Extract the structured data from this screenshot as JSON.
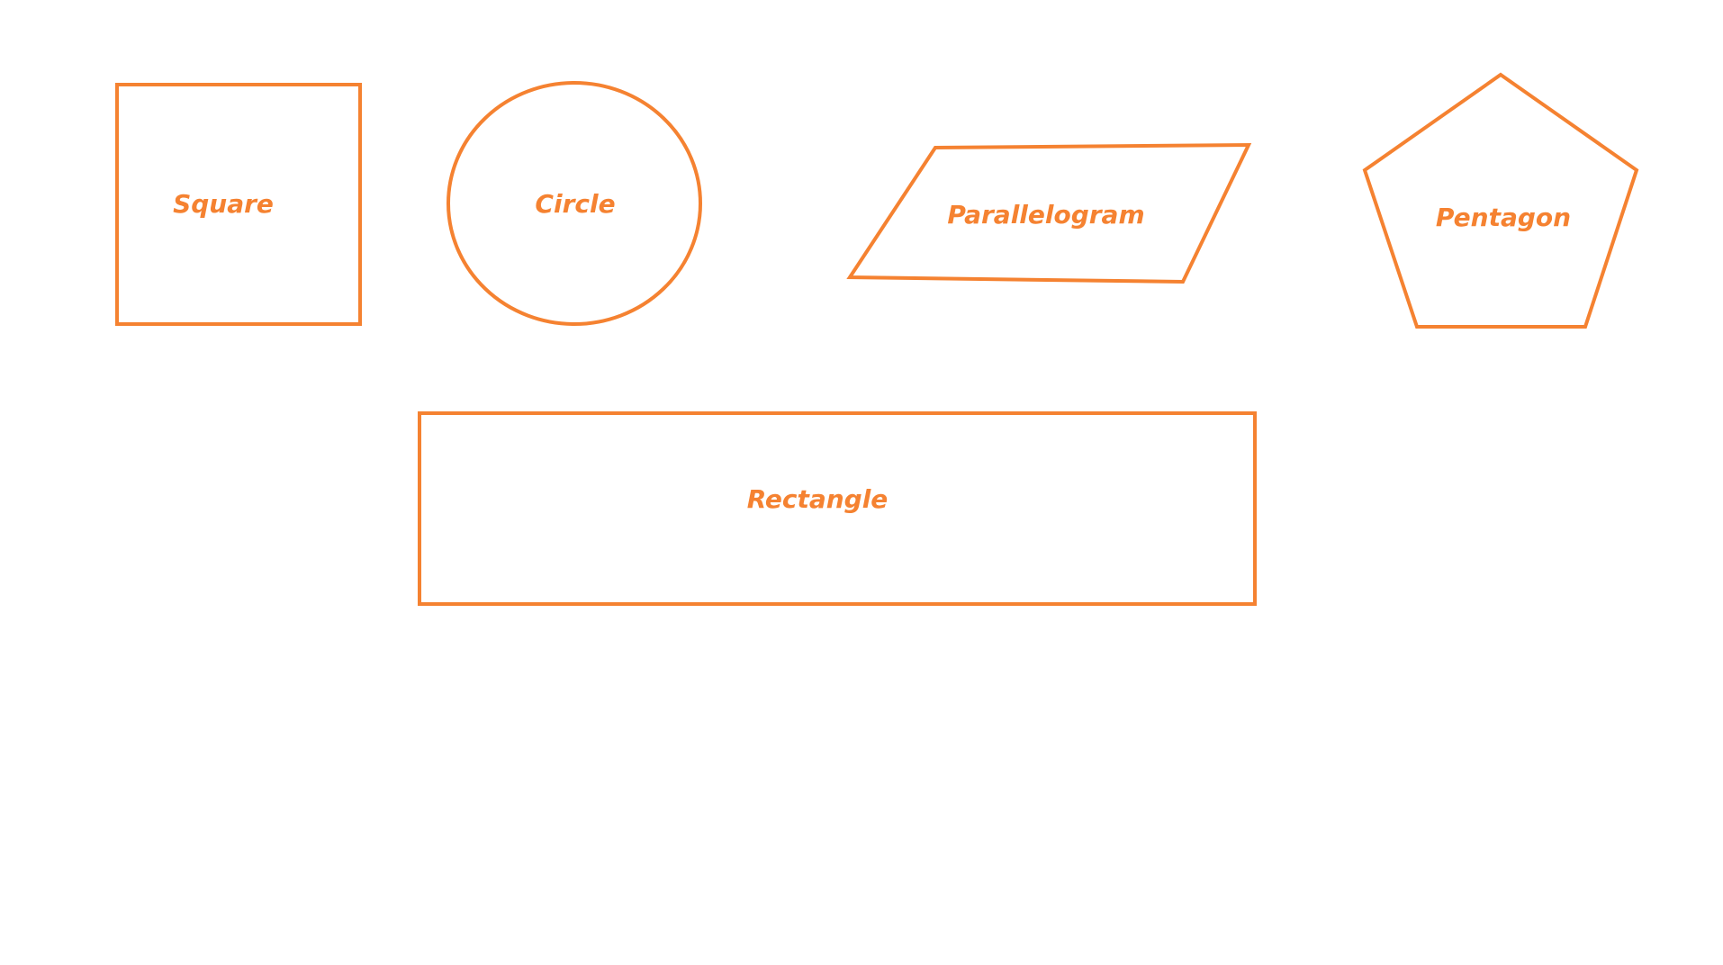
{
  "theme": {
    "stroke_color": "#F58231",
    "text_color": "#F58231",
    "background": "#FFFFFF"
  },
  "shapes": {
    "square": {
      "label": "Square"
    },
    "circle": {
      "label": "Circle"
    },
    "parallelogram": {
      "label": "Parallelogram"
    },
    "pentagon": {
      "label": "Pentagon"
    },
    "rectangle": {
      "label": "Rectangle"
    }
  }
}
